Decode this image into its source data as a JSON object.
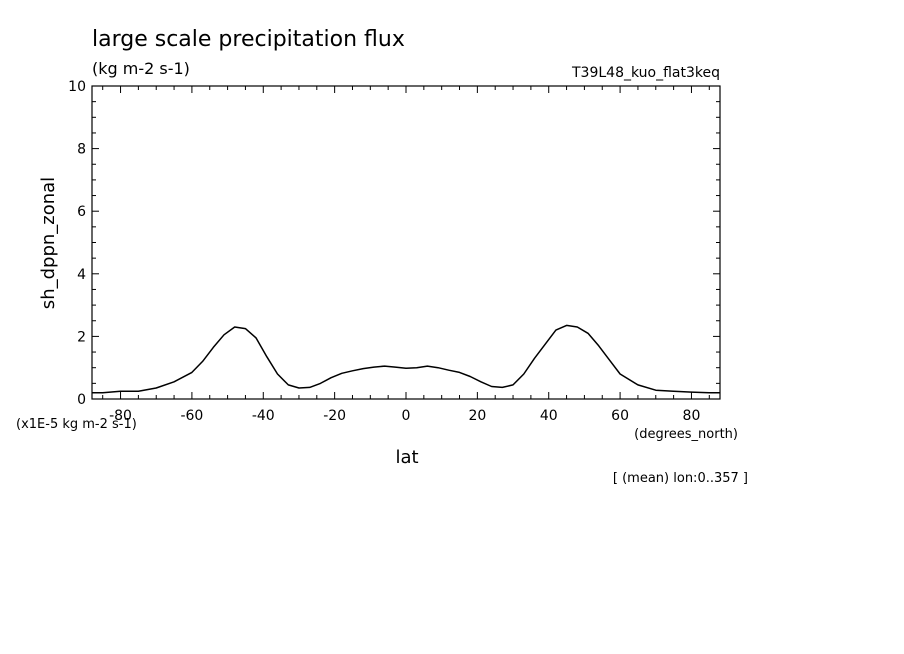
{
  "chart_data": {
    "type": "line",
    "title": "large scale precipitation flux",
    "subtitle": "(kg m-2 s-1)",
    "experiment_label": "T39L48_kuo_flat3keq",
    "ylabel": "sh_dppn_zonal",
    "y_unit_label": "(x1E-5 kg m-2 s-1)",
    "xlabel": "lat",
    "x_unit_label": "(degrees_north)",
    "footnote": "[ (mean) lon:0..357 ]",
    "xlim": [
      -88,
      88
    ],
    "ylim": [
      0,
      10
    ],
    "x_ticks": [
      -80,
      -60,
      -40,
      -20,
      0,
      20,
      40,
      60,
      80
    ],
    "x_tick_labels": [
      "-80",
      "-60",
      "-40",
      "-20",
      "0",
      "20",
      "40",
      "60",
      "80"
    ],
    "y_ticks": [
      0,
      2,
      4,
      6,
      8,
      10
    ],
    "y_tick_labels": [
      "0",
      "2",
      "4",
      "6",
      "8",
      "10"
    ],
    "grid": false,
    "series": [
      {
        "color": "#000000",
        "x": [
          -88,
          -85,
          -80,
          -75,
          -70,
          -65,
          -60,
          -57,
          -54,
          -51,
          -48,
          -45,
          -42,
          -39,
          -36,
          -33,
          -30,
          -27,
          -24,
          -21,
          -18,
          -15,
          -12,
          -9,
          -6,
          -3,
          0,
          3,
          6,
          9,
          12,
          15,
          18,
          21,
          24,
          27,
          30,
          33,
          36,
          39,
          42,
          45,
          48,
          51,
          54,
          57,
          60,
          65,
          70,
          75,
          80,
          85,
          88
        ],
        "y": [
          0.2,
          0.2,
          0.25,
          0.25,
          0.35,
          0.55,
          0.85,
          1.2,
          1.65,
          2.05,
          2.3,
          2.25,
          1.95,
          1.35,
          0.8,
          0.45,
          0.35,
          0.37,
          0.5,
          0.68,
          0.82,
          0.9,
          0.97,
          1.02,
          1.05,
          1.02,
          0.98,
          1.0,
          1.05,
          1.0,
          0.92,
          0.85,
          0.72,
          0.55,
          0.4,
          0.37,
          0.45,
          0.8,
          1.3,
          1.75,
          2.2,
          2.35,
          2.3,
          2.1,
          1.7,
          1.25,
          0.8,
          0.45,
          0.28,
          0.25,
          0.22,
          0.2,
          0.2
        ]
      }
    ]
  }
}
